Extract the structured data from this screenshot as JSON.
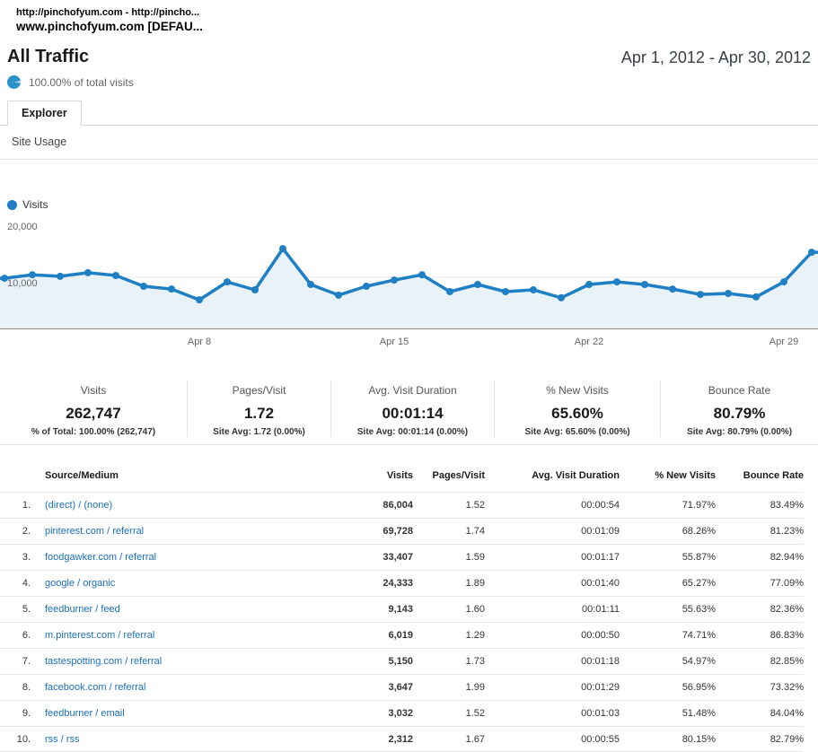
{
  "window": {
    "title_line1": "http://pinchofyum.com - http://pincho...",
    "title_line2": "www.pinchofyum.com [DEFAU..."
  },
  "report": {
    "title": "All Traffic",
    "date_range": "Apr 1, 2012 - Apr 30, 2012",
    "visits_share": "100.00% of total visits",
    "tab": "Explorer",
    "subtab": "Site Usage"
  },
  "colors": {
    "line_blue": "#1e7fc4",
    "area_fill": "#e9f2f9",
    "link_blue": "#1b6fba",
    "gridline": "#e6e6e6",
    "axis": "#8a8a8a"
  },
  "chart_data": {
    "type": "line",
    "legend": "Visits",
    "x": [
      "Apr 1",
      "Apr 2",
      "Apr 3",
      "Apr 4",
      "Apr 5",
      "Apr 6",
      "Apr 7",
      "Apr 8",
      "Apr 9",
      "Apr 10",
      "Apr 11",
      "Apr 12",
      "Apr 13",
      "Apr 14",
      "Apr 15",
      "Apr 16",
      "Apr 17",
      "Apr 18",
      "Apr 19",
      "Apr 20",
      "Apr 21",
      "Apr 22",
      "Apr 23",
      "Apr 24",
      "Apr 25",
      "Apr 26",
      "Apr 27",
      "Apr 28",
      "Apr 29",
      "Apr 30"
    ],
    "values": [
      9800,
      10500,
      10200,
      10900,
      10350,
      8250,
      7700,
      5600,
      9100,
      7550,
      15600,
      8600,
      6500,
      8250,
      9450,
      10500,
      7200,
      8600,
      7200,
      7550,
      6000,
      8600,
      9100,
      8600,
      7700,
      6650,
      6850,
      6150,
      9100,
      14900
    ],
    "ylim": [
      0,
      20000
    ],
    "y_ticks": [
      {
        "label": "20,000",
        "value": 20000
      },
      {
        "label": "10,000",
        "value": 10000
      }
    ],
    "grid_values": [
      10000
    ],
    "x_ticks": [
      {
        "label": "Apr 8",
        "day_index": 7
      },
      {
        "label": "Apr 15",
        "day_index": 14
      },
      {
        "label": "Apr 22",
        "day_index": 21
      },
      {
        "label": "Apr 29",
        "day_index": 28
      }
    ],
    "legend_position": "top-left"
  },
  "summary": {
    "metrics": [
      {
        "label": "Visits",
        "value": "262,747",
        "sub": "% of Total: 100.00% (262,747)"
      },
      {
        "label": "Pages/Visit",
        "value": "1.72",
        "sub": "Site Avg: 1.72 (0.00%)"
      },
      {
        "label": "Avg. Visit Duration",
        "value": "00:01:14",
        "sub": "Site Avg: 00:01:14 (0.00%)"
      },
      {
        "label": "% New Visits",
        "value": "65.60%",
        "sub": "Site Avg: 65.60% (0.00%)"
      },
      {
        "label": "Bounce Rate",
        "value": "80.79%",
        "sub": "Site Avg: 80.79% (0.00%)"
      }
    ]
  },
  "table": {
    "headers": [
      "Source/Medium",
      "Visits",
      "Pages/Visit",
      "Avg. Visit Duration",
      "% New Visits",
      "Bounce Rate"
    ],
    "rows": [
      {
        "rank": "1.",
        "source": "(direct) / (none)",
        "visits": "86,004",
        "pages_per_visit": "1.52",
        "avg_visit_duration": "00:00:54",
        "pct_new_visits": "71.97%",
        "bounce_rate": "83.49%"
      },
      {
        "rank": "2.",
        "source": "pinterest.com / referral",
        "visits": "69,728",
        "pages_per_visit": "1.74",
        "avg_visit_duration": "00:01:09",
        "pct_new_visits": "68.26%",
        "bounce_rate": "81.23%"
      },
      {
        "rank": "3.",
        "source": "foodgawker.com / referral",
        "visits": "33,407",
        "pages_per_visit": "1.59",
        "avg_visit_duration": "00:01:17",
        "pct_new_visits": "55.87%",
        "bounce_rate": "82.94%"
      },
      {
        "rank": "4.",
        "source": "google / organic",
        "visits": "24,333",
        "pages_per_visit": "1.89",
        "avg_visit_duration": "00:01:40",
        "pct_new_visits": "65.27%",
        "bounce_rate": "77.09%"
      },
      {
        "rank": "5.",
        "source": "feedburner / feed",
        "visits": "9,143",
        "pages_per_visit": "1.60",
        "avg_visit_duration": "00:01:11",
        "pct_new_visits": "55.63%",
        "bounce_rate": "82.36%"
      },
      {
        "rank": "6.",
        "source": "m.pinterest.com / referral",
        "visits": "6,019",
        "pages_per_visit": "1.29",
        "avg_visit_duration": "00:00:50",
        "pct_new_visits": "74.71%",
        "bounce_rate": "86.83%"
      },
      {
        "rank": "7.",
        "source": "tastespotting.com / referral",
        "visits": "5,150",
        "pages_per_visit": "1.73",
        "avg_visit_duration": "00:01:18",
        "pct_new_visits": "54.97%",
        "bounce_rate": "82.85%"
      },
      {
        "rank": "8.",
        "source": "facebook.com / referral",
        "visits": "3,647",
        "pages_per_visit": "1.99",
        "avg_visit_duration": "00:01:29",
        "pct_new_visits": "56.95%",
        "bounce_rate": "73.32%"
      },
      {
        "rank": "9.",
        "source": "feedburner / email",
        "visits": "3,032",
        "pages_per_visit": "1.52",
        "avg_visit_duration": "00:01:03",
        "pct_new_visits": "51.48%",
        "bounce_rate": "84.04%"
      },
      {
        "rank": "10.",
        "source": "rss / rss",
        "visits": "2,312",
        "pages_per_visit": "1.67",
        "avg_visit_duration": "00:00:55",
        "pct_new_visits": "80.15%",
        "bounce_rate": "82.79%"
      }
    ]
  }
}
